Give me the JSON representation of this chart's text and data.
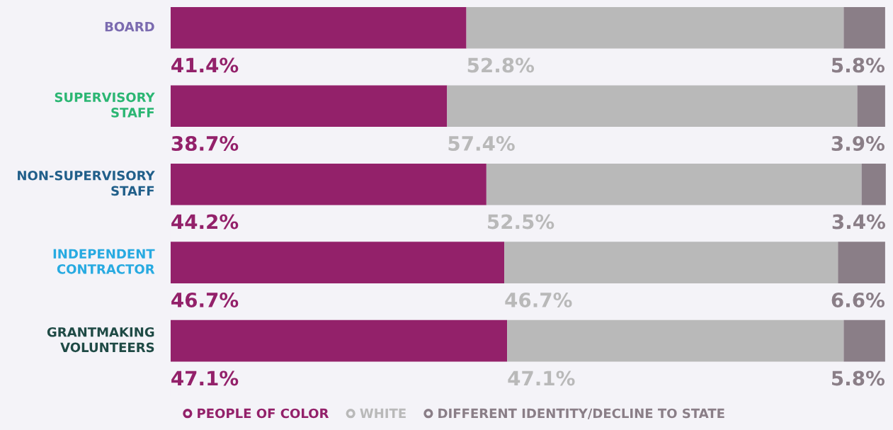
{
  "chart_data": {
    "type": "bar",
    "orientation": "horizontal",
    "stacked": true,
    "categories": [
      "BOARD",
      "SUPERVISORY\nSTAFF",
      "NON-SUPERVISORY\nSTAFF",
      "INDEPENDENT\nCONTRACTOR",
      "GRANTMAKING\nVOLUNTEERS"
    ],
    "series": [
      {
        "name": "PEOPLE OF COLOR",
        "color": "#93216a",
        "values": [
          41.4,
          38.7,
          44.2,
          46.7,
          47.1
        ],
        "value_labels": [
          "41.4%",
          "38.7%",
          "44.2%",
          "46.7%",
          "47.1%"
        ]
      },
      {
        "name": "WHITE",
        "color": "#b9b9b9",
        "values": [
          52.8,
          57.4,
          52.5,
          46.7,
          47.1
        ],
        "value_labels": [
          "52.8%",
          "57.4%",
          "52.5%",
          "46.7%",
          "47.1%"
        ]
      },
      {
        "name": "DIFFERENT IDENTITY/DECLINE TO STATE",
        "color": "#8a7e87",
        "values": [
          5.8,
          3.9,
          3.4,
          6.6,
          5.8
        ],
        "value_labels": [
          "5.8%",
          "3.9%",
          "3.4%",
          "6.6%",
          "5.8%"
        ]
      }
    ],
    "legend": "bottom"
  }
}
